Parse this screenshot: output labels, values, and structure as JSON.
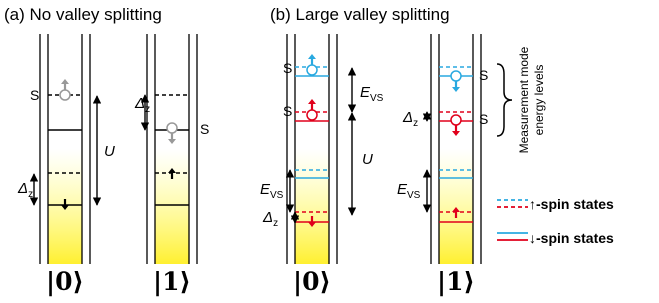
{
  "panel_a": {
    "title": "(a) No valley splitting",
    "ket_0": "|0⟩",
    "ket_1": "|1⟩",
    "singlet_0": "S",
    "singlet_1": "S",
    "exchange": "U",
    "zeeman_0": {
      "symbol": "Δ",
      "subscript": "z"
    },
    "zeeman_1": {
      "symbol": "Δ",
      "subscript": "z"
    }
  },
  "panel_b": {
    "title": "(b) Large valley splitting",
    "ket_0": "|0⟩",
    "ket_1": "|1⟩",
    "singlet_0": "S",
    "singlet_1": "S",
    "singlet_2": "S",
    "singlet_3": "S",
    "exchange": "U",
    "valley_0": {
      "symbol": "E",
      "subscript": "VS"
    },
    "valley_1": {
      "symbol": "E",
      "subscript": "VS"
    },
    "valley_2": {
      "symbol": "E",
      "subscript": "VS"
    },
    "zeeman_0": {
      "symbol": "Δ",
      "subscript": "z"
    },
    "zeeman_1": {
      "symbol": "Δ",
      "subscript": "z"
    },
    "measurement_label": [
      "Measurement mode",
      "energy levels"
    ]
  },
  "legend": {
    "up": "↑-spin states",
    "down": "↓-spin states"
  }
}
